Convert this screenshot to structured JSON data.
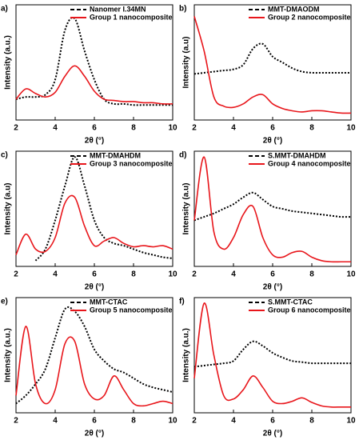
{
  "chart_data": [
    {
      "type": "line",
      "label": "a)",
      "x_label": "2θ (°)",
      "y_label": "Intensity (a.u.)",
      "x": [
        2,
        2.5,
        3,
        3.5,
        4,
        4.5,
        5,
        5.5,
        6,
        6.5,
        7,
        7.5,
        8,
        8.5,
        9,
        9.5,
        10
      ],
      "xlim": [
        2,
        10
      ],
      "xticks": [
        2,
        4,
        6,
        8,
        10
      ],
      "ylim": [
        0,
        100
      ],
      "series": [
        {
          "name": "Nanomer I.34MN",
          "color": "#000000",
          "line_style": "dashed",
          "values": [
            18,
            20,
            20,
            22,
            35,
            78,
            88,
            60,
            35,
            18,
            14,
            14,
            13,
            13,
            13,
            13,
            13
          ]
        },
        {
          "name": "Group 1 nanocomposite",
          "color": "#e8161b",
          "line_style": "solid",
          "values": [
            18,
            27,
            23,
            20,
            24,
            38,
            47,
            38,
            25,
            18,
            17,
            16,
            16,
            15,
            15,
            14,
            14
          ]
        }
      ]
    },
    {
      "type": "line",
      "label": "b)",
      "x_label": "2θ (°)",
      "y_label": "Intensity (a.u)",
      "x": [
        2,
        2.5,
        3,
        3.5,
        4,
        4.5,
        5,
        5.5,
        6,
        6.5,
        7,
        7.5,
        8,
        8.5,
        9,
        9.5,
        10
      ],
      "xlim": [
        2,
        10
      ],
      "xticks": [
        2,
        4,
        6,
        8,
        10
      ],
      "ylim": [
        0,
        100
      ],
      "series": [
        {
          "name": "MMT-DMAODM",
          "color": "#000000",
          "line_style": "dashed",
          "values": [
            40,
            41,
            42,
            43,
            44,
            48,
            62,
            66,
            55,
            50,
            45,
            42,
            41,
            41,
            41,
            41,
            41
          ]
        },
        {
          "name": "Group 2 nanocomposite",
          "color": "#e8161b",
          "line_style": "solid",
          "values": [
            90,
            60,
            20,
            12,
            11,
            14,
            20,
            22,
            14,
            10,
            8,
            7,
            8,
            8,
            7,
            6,
            6
          ]
        }
      ]
    },
    {
      "type": "line",
      "label": "c)",
      "x_label": "2θ (°)",
      "y_label": "Intensity (a.u)",
      "x": [
        2,
        2.5,
        3,
        3.5,
        4,
        4.5,
        5,
        5.5,
        6,
        6.5,
        7,
        7.5,
        8,
        8.5,
        9,
        9.5,
        10
      ],
      "xlim": [
        2,
        10
      ],
      "xticks": [
        2,
        4,
        6,
        8,
        10
      ],
      "ylim": [
        0,
        100
      ],
      "series": [
        {
          "name": "MMT-DMAHDM",
          "color": "#000000",
          "line_style": "dashed",
          "values": [
            null,
            null,
            5,
            15,
            40,
            70,
            95,
            70,
            40,
            25,
            20,
            18,
            15,
            12,
            10,
            8,
            7
          ]
        },
        {
          "name": "Group 3 nanocomposite",
          "color": "#e8161b",
          "line_style": "solid",
          "values": [
            10,
            28,
            15,
            13,
            25,
            55,
            60,
            35,
            18,
            22,
            25,
            20,
            17,
            18,
            17,
            18,
            15
          ]
        }
      ]
    },
    {
      "type": "line",
      "label": "d)",
      "x_label": "2θ (°)",
      "y_label": "Intensity (a.u)",
      "x": [
        2,
        2.5,
        3,
        3.5,
        4,
        4.5,
        5,
        5.5,
        6,
        6.5,
        7,
        7.5,
        8,
        8.5,
        9,
        9.5,
        10
      ],
      "xlim": [
        2,
        10
      ],
      "xticks": [
        2,
        4,
        6,
        8,
        10
      ],
      "ylim": [
        0,
        100
      ],
      "series": [
        {
          "name": "S.MMT-DMAHDM",
          "color": "#000000",
          "line_style": "dashed",
          "values": [
            40,
            43,
            46,
            50,
            54,
            60,
            64,
            58,
            52,
            50,
            48,
            47,
            46,
            45,
            44,
            43,
            43
          ]
        },
        {
          "name": "Group 4 nanocomposite",
          "color": "#e8161b",
          "line_style": "solid",
          "values": [
            40,
            95,
            30,
            15,
            25,
            45,
            52,
            25,
            10,
            8,
            12,
            13,
            8,
            5,
            4,
            4,
            4
          ]
        }
      ]
    },
    {
      "type": "line",
      "label": "e)",
      "x_label": "2θ (°)",
      "y_label": "Intensity (a.u.)",
      "x": [
        2,
        2.5,
        3,
        3.5,
        4,
        4.5,
        5,
        5.5,
        6,
        6.5,
        7,
        7.5,
        8,
        8.5,
        9,
        9.5,
        10
      ],
      "xlim": [
        2,
        10
      ],
      "xticks": [
        2,
        4,
        6,
        8,
        10
      ],
      "ylim": [
        0,
        100
      ],
      "series": [
        {
          "name": "MMT-CTAC",
          "color": "#000000",
          "line_style": "dashed",
          "values": [
            8,
            15,
            25,
            38,
            65,
            90,
            88,
            75,
            55,
            45,
            38,
            35,
            30,
            25,
            22,
            20,
            18
          ]
        },
        {
          "name": "Group 5 nanocomposite",
          "color": "#e8161b",
          "line_style": "solid",
          "values": [
            15,
            75,
            25,
            8,
            20,
            60,
            62,
            25,
            12,
            15,
            32,
            20,
            8,
            6,
            8,
            10,
            8
          ]
        }
      ]
    },
    {
      "type": "line",
      "label": "f)",
      "x_label": "2θ (°)",
      "y_label": "Intensity (a.u.)",
      "x": [
        2,
        2.5,
        3,
        3.5,
        4,
        4.5,
        5,
        5.5,
        6,
        6.5,
        7,
        7.5,
        8,
        8.5,
        9,
        9.5,
        10
      ],
      "xlim": [
        2,
        10
      ],
      "xticks": [
        2,
        4,
        6,
        8,
        10
      ],
      "ylim": [
        0,
        100
      ],
      "series": [
        {
          "name": "S.MMT-CTAC",
          "color": "#000000",
          "line_style": "dashed",
          "values": [
            40,
            41,
            42,
            43,
            45,
            55,
            62,
            58,
            52,
            48,
            45,
            44,
            43,
            43,
            43,
            43,
            43
          ]
        },
        {
          "name": "Group 6 nanocomposite",
          "color": "#e8161b",
          "line_style": "solid",
          "values": [
            30,
            95,
            50,
            15,
            12,
            20,
            32,
            22,
            10,
            8,
            10,
            13,
            9,
            6,
            5,
            5,
            5
          ]
        }
      ]
    }
  ]
}
